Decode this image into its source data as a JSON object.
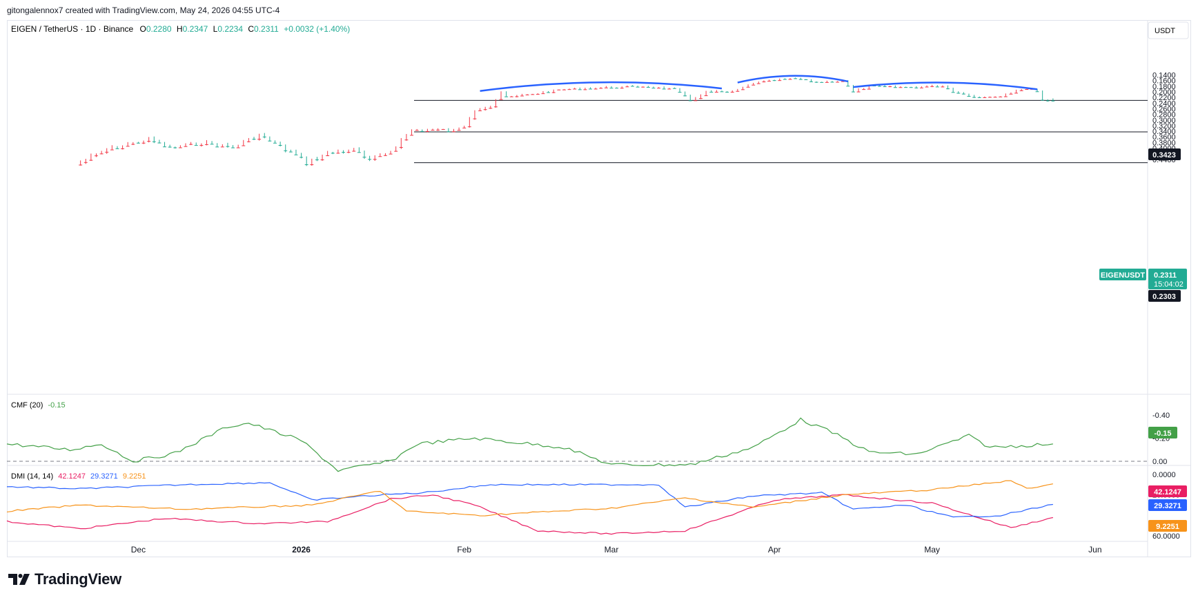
{
  "attribution": "gitongalennox7 created with TradingView.com, May 24, 2026 04:55 UTC-4",
  "brand": {
    "name": "TradingView",
    "logo_icon": "tradingview-logo-icon"
  },
  "colors": {
    "up": "#22ab94",
    "down": "#f23645",
    "pattern": "#2962ff",
    "cmf": "#43a047",
    "dmi_plus": "#2962ff",
    "dmi_minus": "#f7931a",
    "adx": "#e91e63"
  },
  "header": {
    "symbol": "EIGEN / TetherUS · 1D · Binance",
    "o_label": "O",
    "o": "0.2280",
    "h_label": "H",
    "h": "0.2347",
    "l_label": "L",
    "l": "0.2234",
    "c_label": "C",
    "c": "0.2311",
    "change": "+0.0032 (+1.40%)"
  },
  "price_axis": {
    "currency": "USDT",
    "ticks": [
      "0.4400",
      "0.4200",
      "0.4000",
      "0.3800",
      "0.3600",
      "0.3400",
      "0.3200",
      "0.3000",
      "0.2800",
      "0.2600",
      "0.2400",
      "0.2200",
      "0.2000",
      "0.1800",
      "0.1600",
      "0.1400"
    ]
  },
  "badges": {
    "level_top": "0.3423",
    "symbol": "EIGENUSDT",
    "last_price": "0.2311",
    "countdown": "15:04:02",
    "level_mid": "0.2303"
  },
  "time_axis": [
    "Dec",
    "2026",
    "Feb",
    "Mar",
    "Apr",
    "May",
    "Jun"
  ],
  "cmf": {
    "title": "CMF (20)",
    "value": "-0.15",
    "ticks": [
      "0.00",
      "-0.20",
      "-0.40"
    ],
    "badge": "-0.15"
  },
  "dmi": {
    "title": "DMI (14, 14)",
    "v1": "42.1247",
    "v2": "29.3271",
    "v3": "9.2251",
    "ticks": [
      "60.0000",
      "20.0000",
      "0.0000"
    ],
    "badge1": "42.1247",
    "badge2": "29.3271",
    "badge3": "9.2251"
  },
  "chart_data": [
    {
      "type": "candlestick",
      "title": "EIGEN / TetherUS · 1D · Binance",
      "ylim": [
        0.13,
        0.45
      ],
      "x_range": [
        "2025-11-06",
        "2026-06-11"
      ],
      "x_ticks": [
        "Dec",
        "2026",
        "Feb",
        "Mar",
        "Apr",
        "May",
        "Jun"
      ],
      "horizontal_levels": [
        0.4517,
        0.3423,
        0.2303
      ],
      "pattern_arcs": [
        {
          "from": "2026-02-04",
          "to": "2026-03-22",
          "start": 0.197,
          "bottom": 0.166,
          "end": 0.188
        },
        {
          "from": "2026-03-25",
          "to": "2026-04-15",
          "start": 0.167,
          "bottom": 0.143,
          "end": 0.163
        },
        {
          "from": "2026-04-16",
          "to": "2026-05-21",
          "start": 0.183,
          "bottom": 0.167,
          "end": 0.191
        }
      ],
      "key_points": [
        {
          "x": "2025-11-20",
          "y": 0.45
        },
        {
          "x": "2025-11-25",
          "y": 0.405
        },
        {
          "x": "2025-12-03",
          "y": 0.368
        },
        {
          "x": "2025-12-07",
          "y": 0.4
        },
        {
          "x": "2025-12-13",
          "y": 0.38
        },
        {
          "x": "2025-12-19",
          "y": 0.397
        },
        {
          "x": "2025-12-24",
          "y": 0.352
        },
        {
          "x": "2025-12-31",
          "y": 0.425
        },
        {
          "x": "2026-01-02",
          "y": 0.451
        },
        {
          "x": "2026-01-06",
          "y": 0.418
        },
        {
          "x": "2026-01-11",
          "y": 0.405
        },
        {
          "x": "2026-01-14",
          "y": 0.445
        },
        {
          "x": "2026-01-18",
          "y": 0.408
        },
        {
          "x": "2026-01-22",
          "y": 0.336
        },
        {
          "x": "2026-01-28",
          "y": 0.335
        },
        {
          "x": "2026-01-30",
          "y": 0.34
        },
        {
          "x": "2026-02-01",
          "y": 0.32
        },
        {
          "x": "2026-02-03",
          "y": 0.262
        },
        {
          "x": "2026-02-06",
          "y": 0.25
        },
        {
          "x": "2026-02-08",
          "y": 0.2
        },
        {
          "x": "2026-02-09",
          "y": 0.22
        },
        {
          "x": "2026-02-20",
          "y": 0.19
        },
        {
          "x": "2026-02-27",
          "y": 0.185
        },
        {
          "x": "2026-03-07",
          "y": 0.18
        },
        {
          "x": "2026-03-13",
          "y": 0.19
        },
        {
          "x": "2026-03-16",
          "y": 0.23
        },
        {
          "x": "2026-03-19",
          "y": 0.2
        },
        {
          "x": "2026-03-24",
          "y": 0.2
        },
        {
          "x": "2026-03-28",
          "y": 0.168
        },
        {
          "x": "2026-04-01",
          "y": 0.158
        },
        {
          "x": "2026-04-05",
          "y": 0.152
        },
        {
          "x": "2026-04-09",
          "y": 0.165
        },
        {
          "x": "2026-04-14",
          "y": 0.16
        },
        {
          "x": "2026-04-16",
          "y": 0.2
        },
        {
          "x": "2026-04-19",
          "y": 0.18
        },
        {
          "x": "2026-04-26",
          "y": 0.184
        },
        {
          "x": "2026-05-03",
          "y": 0.178
        },
        {
          "x": "2026-05-05",
          "y": 0.198
        },
        {
          "x": "2026-05-10",
          "y": 0.22
        },
        {
          "x": "2026-05-14",
          "y": 0.213
        },
        {
          "x": "2026-05-16",
          "y": 0.2
        },
        {
          "x": "2026-05-18",
          "y": 0.188
        },
        {
          "x": "2026-05-21",
          "y": 0.195
        },
        {
          "x": "2026-05-22",
          "y": 0.228
        },
        {
          "x": "2026-05-24",
          "y": 0.2311
        }
      ],
      "last": {
        "o": 0.228,
        "h": 0.2347,
        "l": 0.2234,
        "c": 0.2311
      }
    },
    {
      "type": "line",
      "title": "CMF (20)",
      "ylim": [
        -0.42,
        0.12
      ],
      "reference_line": 0.0,
      "series": [
        {
          "name": "CMF (20)",
          "points": [
            {
              "x": "2025-11-06",
              "y": -0.15
            },
            {
              "x": "2025-11-18",
              "y": -0.1
            },
            {
              "x": "2025-11-24",
              "y": -0.15
            },
            {
              "x": "2025-11-30",
              "y": 0.0
            },
            {
              "x": "2025-12-08",
              "y": -0.07
            },
            {
              "x": "2025-12-18",
              "y": -0.3
            },
            {
              "x": "2025-12-22",
              "y": -0.33
            },
            {
              "x": "2026-01-01",
              "y": -0.18
            },
            {
              "x": "2026-01-08",
              "y": 0.08
            },
            {
              "x": "2026-01-18",
              "y": 0.0
            },
            {
              "x": "2026-01-23",
              "y": -0.15
            },
            {
              "x": "2026-02-03",
              "y": -0.2
            },
            {
              "x": "2026-02-20",
              "y": -0.12
            },
            {
              "x": "2026-03-01",
              "y": 0.03
            },
            {
              "x": "2026-03-16",
              "y": 0.03
            },
            {
              "x": "2026-03-28",
              "y": -0.12
            },
            {
              "x": "2026-04-06",
              "y": -0.36
            },
            {
              "x": "2026-04-12",
              "y": -0.25
            },
            {
              "x": "2026-04-19",
              "y": -0.08
            },
            {
              "x": "2026-04-28",
              "y": -0.06
            },
            {
              "x": "2026-05-08",
              "y": -0.22
            },
            {
              "x": "2026-05-12",
              "y": -0.12
            },
            {
              "x": "2026-05-24",
              "y": -0.15
            }
          ]
        }
      ]
    },
    {
      "type": "line",
      "title": "DMI (14, 14)",
      "ylim": [
        0,
        65
      ],
      "series": [
        {
          "name": "",
          "color": "#e91e63",
          "points": [
            {
              "x": "2025-11-06",
              "y": 46
            },
            {
              "x": "2025-11-20",
              "y": 53
            },
            {
              "x": "2025-12-06",
              "y": 43
            },
            {
              "x": "2025-12-24",
              "y": 48
            },
            {
              "x": "2026-01-06",
              "y": 46
            },
            {
              "x": "2026-01-18",
              "y": 24
            },
            {
              "x": "2026-01-26",
              "y": 20
            },
            {
              "x": "2026-02-03",
              "y": 30
            },
            {
              "x": "2026-02-15",
              "y": 55
            },
            {
              "x": "2026-03-01",
              "y": 58
            },
            {
              "x": "2026-03-15",
              "y": 55
            },
            {
              "x": "2026-04-01",
              "y": 25
            },
            {
              "x": "2026-04-14",
              "y": 20
            },
            {
              "x": "2026-05-01",
              "y": 28
            },
            {
              "x": "2026-05-16",
              "y": 52
            },
            {
              "x": "2026-05-24",
              "y": 42.12
            }
          ]
        },
        {
          "name": "",
          "color": "#2962ff",
          "points": [
            {
              "x": "2025-11-06",
              "y": 12
            },
            {
              "x": "2025-11-20",
              "y": 14
            },
            {
              "x": "2025-12-10",
              "y": 10
            },
            {
              "x": "2025-12-26",
              "y": 8
            },
            {
              "x": "2026-01-03",
              "y": 25
            },
            {
              "x": "2026-01-16",
              "y": 20
            },
            {
              "x": "2026-01-24",
              "y": 18
            },
            {
              "x": "2026-02-06",
              "y": 10
            },
            {
              "x": "2026-03-10",
              "y": 10
            },
            {
              "x": "2026-03-15",
              "y": 32
            },
            {
              "x": "2026-03-28",
              "y": 21
            },
            {
              "x": "2026-04-10",
              "y": 18
            },
            {
              "x": "2026-04-16",
              "y": 34
            },
            {
              "x": "2026-04-26",
              "y": 30
            },
            {
              "x": "2026-05-05",
              "y": 42
            },
            {
              "x": "2026-05-14",
              "y": 40
            },
            {
              "x": "2026-05-24",
              "y": 29.33
            }
          ]
        },
        {
          "name": "",
          "color": "#f7931a",
          "points": [
            {
              "x": "2025-11-06",
              "y": 36
            },
            {
              "x": "2025-11-20",
              "y": 30
            },
            {
              "x": "2025-12-10",
              "y": 34
            },
            {
              "x": "2026-01-03",
              "y": 30
            },
            {
              "x": "2026-01-16",
              "y": 16
            },
            {
              "x": "2026-01-21",
              "y": 36
            },
            {
              "x": "2026-02-04",
              "y": 40
            },
            {
              "x": "2026-03-01",
              "y": 33
            },
            {
              "x": "2026-03-15",
              "y": 23
            },
            {
              "x": "2026-03-28",
              "y": 32
            },
            {
              "x": "2026-04-14",
              "y": 20
            },
            {
              "x": "2026-05-01",
              "y": 15
            },
            {
              "x": "2026-05-16",
              "y": 6
            },
            {
              "x": "2026-05-19",
              "y": 14
            },
            {
              "x": "2026-05-24",
              "y": 9.23
            }
          ]
        }
      ]
    }
  ]
}
